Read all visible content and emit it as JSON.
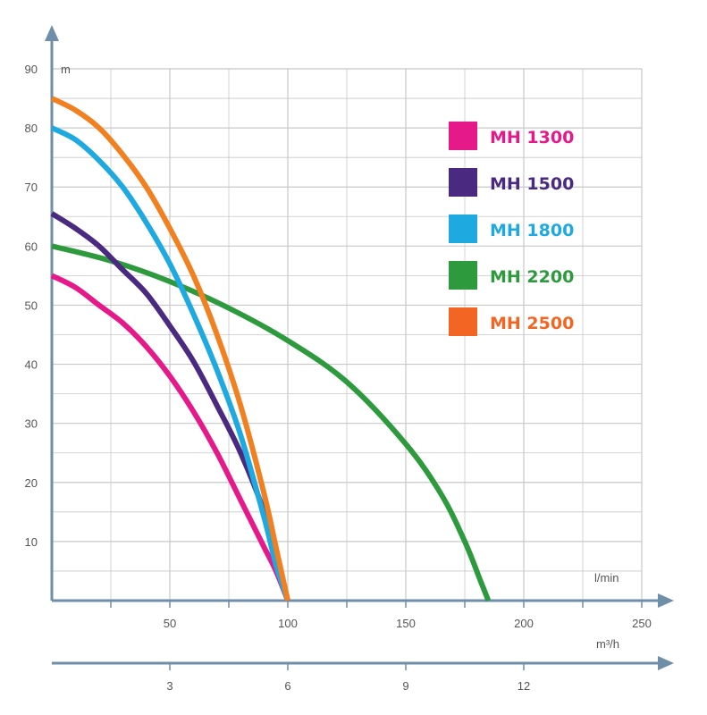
{
  "chart_data": {
    "type": "line",
    "title": "",
    "xlabel": "l/min",
    "x2label": "m³/h",
    "ylabel": "m",
    "xlim": [
      0,
      250
    ],
    "ylim": [
      0,
      90
    ],
    "grid": true,
    "legend_position": "right",
    "x_ticks": [
      50,
      100,
      150,
      200,
      250
    ],
    "x2_ticks": [
      3,
      6,
      9,
      12
    ],
    "y_ticks": [
      10,
      20,
      30,
      40,
      50,
      60,
      70,
      80,
      90
    ],
    "series": [
      {
        "name": "MH 1300",
        "color": "#e6198a",
        "x": [
          0,
          10,
          20,
          30,
          40,
          50,
          60,
          70,
          80,
          90,
          95,
          100
        ],
        "y": [
          55,
          53,
          50,
          47,
          43,
          38,
          32,
          25,
          17,
          9,
          5,
          0
        ]
      },
      {
        "name": "MH 1500",
        "color": "#4a2a80",
        "x": [
          0,
          10,
          20,
          30,
          40,
          50,
          60,
          70,
          80,
          90,
          95,
          100
        ],
        "y": [
          65.5,
          63,
          60,
          56,
          52,
          46.5,
          40.5,
          33,
          25,
          15,
          8,
          0
        ]
      },
      {
        "name": "MH 1800",
        "color": "#1ea9e1",
        "x": [
          0,
          10,
          20,
          30,
          40,
          50,
          60,
          70,
          80,
          90,
          95,
          100
        ],
        "y": [
          80,
          78,
          74.5,
          70,
          64,
          57,
          48.5,
          39,
          28,
          14,
          6,
          0
        ]
      },
      {
        "name": "MH 2200",
        "color": "#2e9a3e",
        "x": [
          0,
          25,
          50,
          75,
          100,
          125,
          150,
          165,
          175,
          182,
          185
        ],
        "y": [
          60,
          57.5,
          54,
          49.5,
          44,
          37,
          26.5,
          18,
          10,
          3,
          0
        ]
      },
      {
        "name": "MH 2500",
        "color": "#f08020",
        "x": [
          0,
          10,
          20,
          30,
          40,
          50,
          60,
          70,
          80,
          90,
          95,
          100
        ],
        "y": [
          85,
          83,
          80,
          75.5,
          70,
          63,
          55,
          45,
          33,
          18,
          9,
          0
        ]
      }
    ],
    "legend_swatches": [
      "#e6198a",
      "#4a2a80",
      "#1ea9e1",
      "#2e9a3e",
      "#f26522"
    ],
    "legend_text_colors": [
      "#e6198a",
      "#4a2a80",
      "#1ea9e1",
      "#2e9a3e",
      "#f26522"
    ]
  }
}
